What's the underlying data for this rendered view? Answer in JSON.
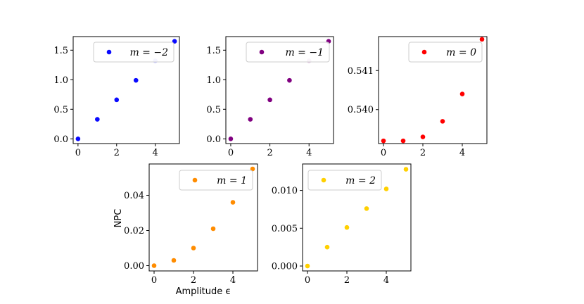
{
  "figure": {
    "ylabel": "NPC",
    "xlabel": "Amplitude ϵ"
  },
  "chart_data": [
    {
      "type": "scatter",
      "series": [
        {
          "name": "m = −2",
          "x": [
            0,
            1,
            2,
            3,
            4,
            5
          ],
          "values": [
            0.0,
            0.33,
            0.66,
            0.99,
            1.32,
            1.65
          ]
        }
      ],
      "color": "#0a0aff",
      "legend_label": "m = −2",
      "xlim": [
        -0.25,
        5.25
      ],
      "ylim": [
        -0.08,
        1.73
      ],
      "xticks": [
        0,
        2,
        4
      ],
      "yticks": [
        0.0,
        0.5,
        1.0,
        1.5
      ],
      "ytick_labels": [
        "0.0",
        "0.5",
        "1.0",
        "1.5"
      ],
      "legend": "upper-right",
      "faded_points": [
        4
      ]
    },
    {
      "type": "scatter",
      "series": [
        {
          "name": "m = −1",
          "x": [
            0,
            1,
            2,
            3,
            4,
            5
          ],
          "values": [
            0.0,
            0.33,
            0.66,
            0.99,
            1.32,
            1.65
          ]
        }
      ],
      "color": "#800080",
      "legend_label": "m = −1",
      "xlim": [
        -0.25,
        5.25
      ],
      "ylim": [
        -0.08,
        1.73
      ],
      "xticks": [
        0,
        2,
        4
      ],
      "yticks": [
        0.0,
        0.5,
        1.0,
        1.5
      ],
      "ytick_labels": [
        "0.0",
        "0.5",
        "1.0",
        "1.5"
      ],
      "legend": "upper-right",
      "faded_points": [
        4
      ]
    },
    {
      "type": "scatter",
      "series": [
        {
          "name": "m = 0",
          "x": [
            0,
            1,
            2,
            3,
            4,
            5
          ],
          "values": [
            0.5392,
            0.5392,
            0.5393,
            0.5397,
            0.5404,
            0.5418
          ]
        }
      ],
      "color": "#ff0000",
      "legend_label": "m = 0",
      "xlim": [
        -0.25,
        5.25
      ],
      "ylim": [
        0.53913,
        0.54187
      ],
      "xticks": [
        0,
        2,
        4
      ],
      "yticks": [
        0.54,
        0.541
      ],
      "ytick_labels": [
        "0.540",
        "0.541"
      ],
      "legend": "upper-right",
      "faded_points": []
    },
    {
      "type": "scatter",
      "series": [
        {
          "name": "m = 1",
          "x": [
            0,
            1,
            2,
            3,
            4,
            5
          ],
          "values": [
            0.0,
            0.003,
            0.01,
            0.021,
            0.036,
            0.055
          ]
        }
      ],
      "color": "#ff8c00",
      "legend_label": "m = 1",
      "xlim": [
        -0.25,
        5.25
      ],
      "ylim": [
        -0.003,
        0.0578
      ],
      "xticks": [
        0,
        2,
        4
      ],
      "yticks": [
        0.0,
        0.02,
        0.04
      ],
      "ytick_labels": [
        "0.00",
        "0.02",
        "0.04"
      ],
      "legend": "upper-right",
      "faded_points": []
    },
    {
      "type": "scatter",
      "series": [
        {
          "name": "m = 2",
          "x": [
            0,
            1,
            2,
            3,
            4,
            5
          ],
          "values": [
            0.0,
            0.0025,
            0.0051,
            0.0076,
            0.0102,
            0.0128
          ]
        }
      ],
      "color": "#ffd000",
      "legend_label": "m = 2",
      "xlim": [
        -0.25,
        5.25
      ],
      "ylim": [
        -0.00065,
        0.0135
      ],
      "xticks": [
        0,
        2,
        4
      ],
      "yticks": [
        0.0,
        0.005,
        0.01
      ],
      "ytick_labels": [
        "0.000",
        "0.005",
        "0.010"
      ],
      "legend": "upper-left",
      "faded_points": []
    }
  ]
}
